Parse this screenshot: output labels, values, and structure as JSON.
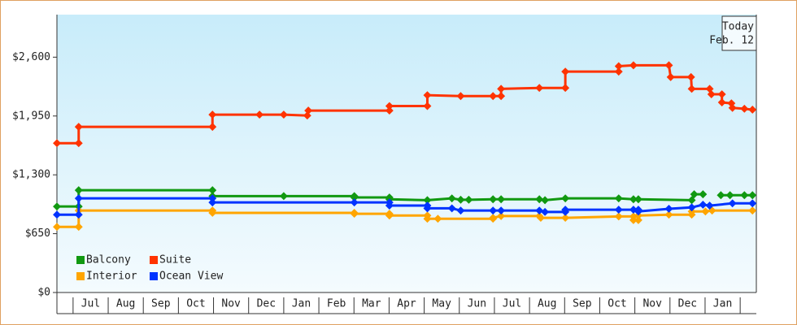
{
  "chart_data": {
    "type": "step-line",
    "annotation": {
      "title": "Today",
      "date": "Feb. 12"
    },
    "xlim": [
      -0.46,
      19.46
    ],
    "xticks": [
      {
        "value": 0.5,
        "label": "Jul"
      },
      {
        "value": 1.5,
        "label": "Aug"
      },
      {
        "value": 2.5,
        "label": "Sep"
      },
      {
        "value": 3.5,
        "label": "Oct"
      },
      {
        "value": 4.5,
        "label": "Nov"
      },
      {
        "value": 5.5,
        "label": "Dec"
      },
      {
        "value": 6.5,
        "label": "Jan"
      },
      {
        "value": 7.5,
        "label": "Feb"
      },
      {
        "value": 8.5,
        "label": "Mar"
      },
      {
        "value": 9.5,
        "label": "Apr"
      },
      {
        "value": 10.5,
        "label": "May"
      },
      {
        "value": 11.5,
        "label": "Jun"
      },
      {
        "value": 12.5,
        "label": "Jul"
      },
      {
        "value": 13.5,
        "label": "Aug"
      },
      {
        "value": 14.5,
        "label": "Sep"
      },
      {
        "value": 15.5,
        "label": "Oct"
      },
      {
        "value": 16.5,
        "label": "Nov"
      },
      {
        "value": 17.5,
        "label": "Dec"
      },
      {
        "value": 18.5,
        "label": "Jan"
      }
    ],
    "ylim": [
      0,
      3070
    ],
    "yticks": [
      {
        "value": 0,
        "label": "$0"
      },
      {
        "value": 650,
        "label": "$650"
      },
      {
        "value": 1300,
        "label": "$1,300"
      },
      {
        "value": 1950,
        "label": "$1,950"
      },
      {
        "value": 2600,
        "label": "$2,600"
      }
    ],
    "legend": "lower left",
    "series": [
      {
        "name": "Balcony",
        "color": "#119911",
        "x": [
          -0.46,
          0.16,
          0.16,
          3.97,
          3.97,
          6.0,
          8.01,
          8.01,
          9.01,
          9.01,
          10.09,
          10.79,
          11.04,
          11.27,
          11.96,
          12.19,
          13.28,
          13.44,
          14.02,
          15.54,
          15.96,
          16.1,
          17.62,
          17.69,
          17.94,
          18.2,
          18.45,
          18.71,
          19.12,
          19.35
        ],
        "values": [
          950,
          950,
          1130,
          1130,
          1065,
          1065,
          1065,
          1050,
          1050,
          1030,
          1020,
          1040,
          1025,
          1025,
          1030,
          1030,
          1030,
          1020,
          1040,
          1040,
          1030,
          1030,
          1020,
          1085,
          1085,
          null,
          1075,
          1075,
          1075,
          1075
        ]
      },
      {
        "name": "Suite",
        "color": "#ff3300",
        "x": [
          -0.46,
          0.16,
          0.16,
          3.97,
          3.97,
          5.31,
          6.0,
          6.67,
          6.7,
          9.01,
          9.01,
          10.09,
          10.09,
          11.04,
          11.96,
          12.19,
          12.19,
          13.28,
          14.02,
          14.02,
          15.54,
          15.54,
          15.96,
          16.97,
          17.02,
          17.6,
          17.62,
          18.13,
          18.18,
          18.48,
          18.48,
          18.75,
          18.78,
          19.12,
          19.35
        ],
        "values": [
          1650,
          1650,
          1830,
          1830,
          1965,
          1965,
          1965,
          1955,
          2010,
          2010,
          2060,
          2060,
          2180,
          2170,
          2170,
          2170,
          2250,
          2260,
          2260,
          2440,
          2440,
          2500,
          2510,
          2510,
          2380,
          2380,
          2250,
          2250,
          2190,
          2190,
          2100,
          2090,
          2040,
          2030,
          2020
        ]
      },
      {
        "name": "Interior",
        "color": "#ffa500",
        "x": [
          -0.46,
          0.16,
          0.16,
          3.97,
          3.97,
          8.01,
          8.01,
          9.01,
          9.01,
          10.09,
          10.09,
          10.39,
          11.96,
          11.96,
          12.19,
          13.28,
          13.32,
          14.02,
          15.54,
          15.96,
          15.96,
          16.1,
          16.1,
          16.97,
          17.62,
          17.62,
          18.01,
          18.2,
          19.35
        ],
        "values": [
          725,
          725,
          905,
          905,
          880,
          880,
          870,
          870,
          850,
          850,
          815,
          815,
          815,
          825,
          845,
          845,
          825,
          825,
          840,
          840,
          800,
          800,
          850,
          860,
          860,
          895,
          895,
          905,
          905
        ]
      },
      {
        "name": "Ocean View",
        "color": "#0033ff",
        "x": [
          -0.46,
          0.16,
          0.16,
          3.97,
          3.97,
          8.01,
          9.01,
          9.01,
          10.09,
          10.09,
          10.79,
          11.04,
          11.96,
          12.19,
          13.28,
          13.44,
          14.02,
          14.02,
          15.54,
          15.96,
          16.1,
          16.1,
          16.97,
          17.62,
          17.94,
          18.13,
          18.78,
          19.35
        ],
        "values": [
          860,
          860,
          1040,
          1040,
          995,
          995,
          995,
          960,
          960,
          930,
          930,
          905,
          905,
          905,
          905,
          890,
          890,
          915,
          915,
          915,
          915,
          895,
          925,
          940,
          970,
          960,
          985,
          985
        ]
      }
    ]
  }
}
